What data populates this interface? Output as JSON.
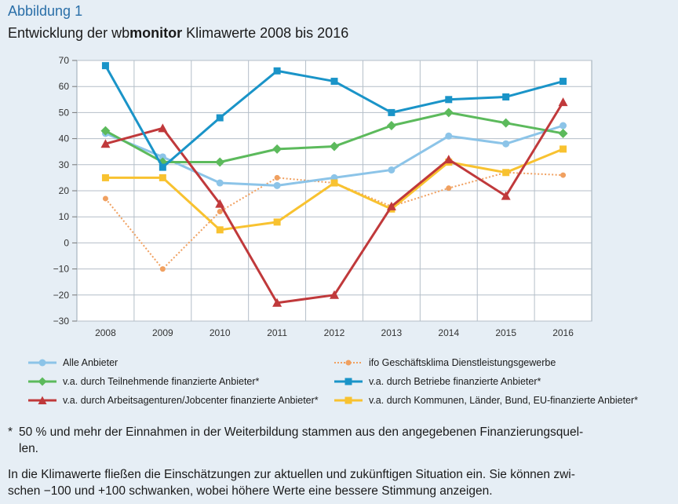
{
  "figure": {
    "label": "Abbildung 1",
    "title_pre": "Entwicklung der ",
    "title_brand_a": "wb",
    "title_brand_b": "monitor",
    "title_post": " Klimawerte 2008 bis 2016"
  },
  "chart_data": {
    "type": "line",
    "x": [
      "2008",
      "2009",
      "2010",
      "2011",
      "2012",
      "2013",
      "2014",
      "2015",
      "2016"
    ],
    "ylim": [
      -30,
      70
    ],
    "yticks": [
      "70",
      "60",
      "50",
      "40",
      "30",
      "20",
      "10",
      "0",
      "−10",
      "−20",
      "−30"
    ],
    "grid": true,
    "legend_position": "bottom",
    "series": [
      {
        "name": "Alle Anbieter",
        "color": "#8cc4e8",
        "marker": "circle",
        "dash": false,
        "values": [
          42,
          33,
          23,
          22,
          25,
          28,
          41,
          38,
          45
        ]
      },
      {
        "name": "ifo Geschäftsklima Dienstleistungsgewerbe",
        "color": "#f0a060",
        "marker": "circle-small",
        "dash": true,
        "values": [
          17,
          -10,
          12,
          25,
          23,
          14,
          21,
          27,
          26
        ]
      },
      {
        "name": "v.a.  durch Teilnehmende finanzierte Anbieter*",
        "color": "#5cba5c",
        "marker": "diamond",
        "dash": false,
        "values": [
          43,
          31,
          31,
          36,
          37,
          45,
          50,
          46,
          42
        ]
      },
      {
        "name": "v.a. durch Betriebe finanzierte Anbieter*",
        "color": "#1a94c8",
        "marker": "square",
        "dash": false,
        "values": [
          68,
          29,
          48,
          66,
          62,
          50,
          55,
          56,
          62
        ]
      },
      {
        "name": "v.a. durch Arbeitsagenturen/Jobcenter finanzierte Anbieter*",
        "color": "#c0393b",
        "marker": "triangle",
        "dash": false,
        "values": [
          38,
          44,
          15,
          -23,
          -20,
          14,
          32,
          18,
          54
        ]
      },
      {
        "name": "v.a. durch Kommunen, Länder, Bund, EU-finanzierte Anbieter*",
        "color": "#f8c230",
        "marker": "square",
        "dash": false,
        "values": [
          25,
          25,
          5,
          8,
          23,
          13,
          31,
          27,
          36
        ]
      }
    ]
  },
  "notes": {
    "star": "*",
    "note1_line1": "50 % und mehr der Einnahmen in der Weiterbildung stammen aus den angegebenen Finanzierungsquel-",
    "note1_line2": "len.",
    "note2_line1": "In die Klimawerte fließen die Einschätzungen zur aktuellen und zukünftigen Situation ein. Sie können zwi-",
    "note2_line2": "schen −100 und +100 schwanken, wobei höhere Werte eine bessere Stimmung anzeigen."
  }
}
